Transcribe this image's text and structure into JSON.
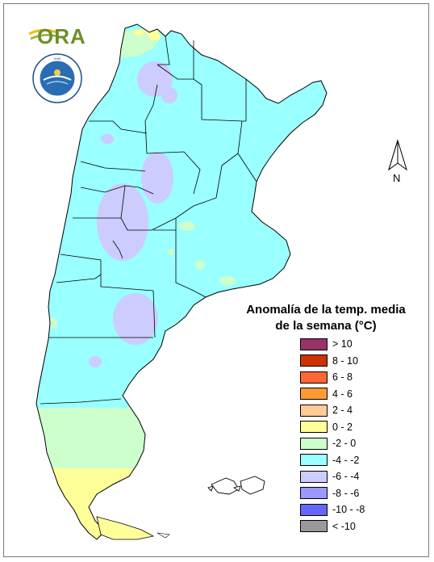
{
  "logos": {
    "ora_text": "ORA",
    "smn_seal": "Servicio Meteorológico Nacional - Argentina"
  },
  "north_arrow": {
    "letter": "N"
  },
  "legend": {
    "title_line1": "Anomalía de la temp. media",
    "title_line2": "de la semana (°C)",
    "items": [
      {
        "label": "> 10",
        "color": "#993366"
      },
      {
        "label": "8 - 10",
        "color": "#cc3300"
      },
      {
        "label": "6 - 8",
        "color": "#ff6633"
      },
      {
        "label": "4 - 6",
        "color": "#ff9933"
      },
      {
        "label": "2 - 4",
        "color": "#ffcc99"
      },
      {
        "label": "0 - 2",
        "color": "#ffff99"
      },
      {
        "label": "-2 - 0",
        "color": "#ccffcc"
      },
      {
        "label": "-4 - -2",
        "color": "#99ffff"
      },
      {
        "label": "-6 - -4",
        "color": "#ccccff"
      },
      {
        "label": "-8 - -6",
        "color": "#9999ff"
      },
      {
        "label": "-10 - -8",
        "color": "#6666ff"
      },
      {
        "label": "< -10",
        "color": "#999999"
      }
    ]
  },
  "map_colors": {
    "cyan": "#99ffff",
    "lavender": "#ccccff",
    "light_green": "#ccffcc",
    "yellow": "#ffff99",
    "border": "#000000"
  }
}
